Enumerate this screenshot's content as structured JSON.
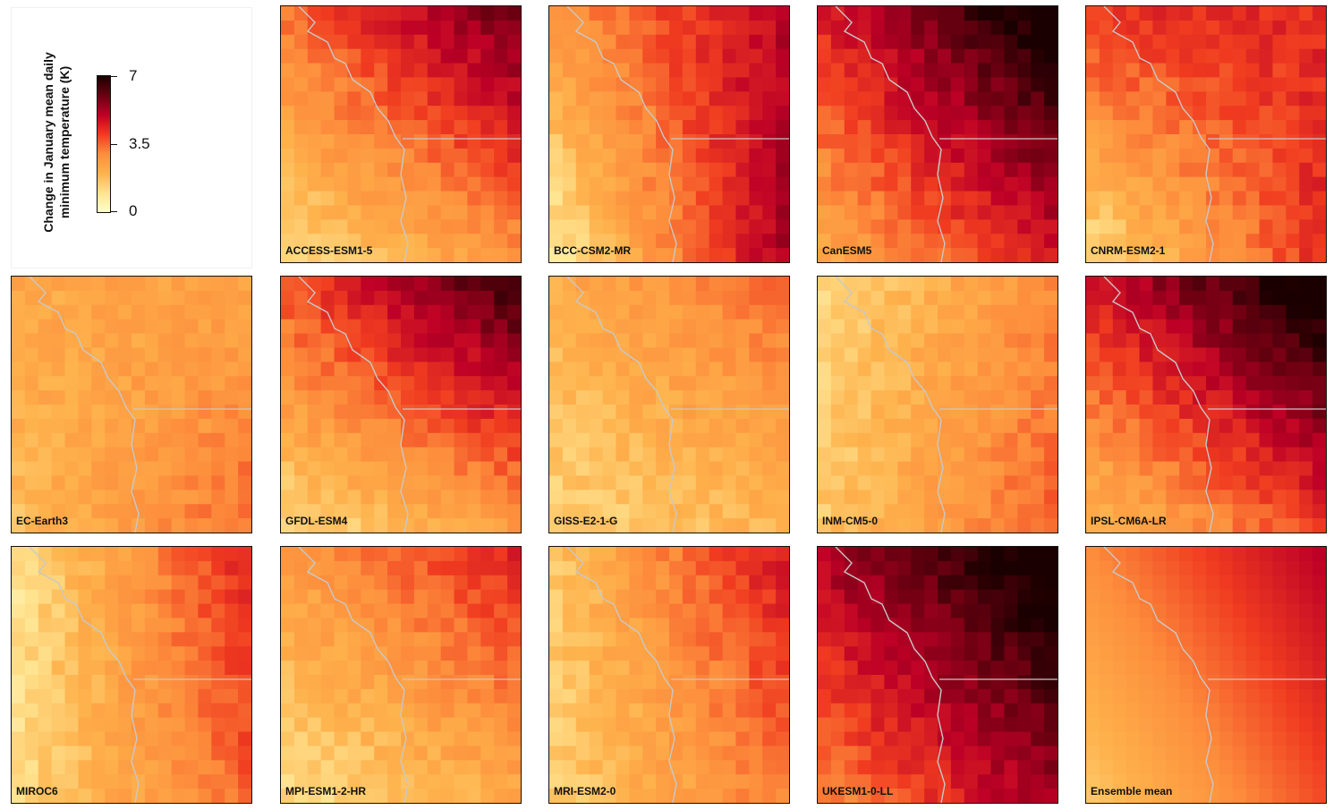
{
  "legend": {
    "title_line1": "Change in January mean daily",
    "title_line2": "minimum temperature (K)",
    "ticks": [
      "7",
      "3.5",
      "0"
    ],
    "vmin": 0,
    "vmax": 7,
    "colors": [
      "#ffffcc",
      "#ffe38f",
      "#feb24c",
      "#fd8d3c",
      "#f03b20",
      "#bd0026",
      "#6b0011",
      "#1a0000"
    ]
  },
  "chart_data": {
    "type": "heatmap",
    "value_range": [
      0,
      7
    ],
    "panels": [
      {
        "label": "ACCESS-ESM1-5",
        "nw": 3.4,
        "ne": 6.0,
        "sw": 1.2,
        "se": 2.8
      },
      {
        "label": "BCC-CSM2-MR",
        "nw": 2.8,
        "ne": 5.0,
        "sw": 0.8,
        "se": 5.2
      },
      {
        "label": "CanESM5",
        "nw": 4.5,
        "ne": 7.5,
        "sw": 2.3,
        "se": 4.6
      },
      {
        "label": "CNRM-ESM2-1",
        "nw": 4.2,
        "ne": 4.3,
        "sw": 1.1,
        "se": 4.2
      },
      {
        "label": "EC-Earth3",
        "nw": 2.3,
        "ne": 2.4,
        "sw": 1.8,
        "se": 3.4
      },
      {
        "label": "GFDL-ESM4",
        "nw": 3.8,
        "ne": 6.6,
        "sw": 1.2,
        "se": 2.6
      },
      {
        "label": "GISS-E2-1-G",
        "nw": 2.2,
        "ne": 3.4,
        "sw": 1.3,
        "se": 2.0
      },
      {
        "label": "INM-CM5-0",
        "nw": 1.2,
        "ne": 3.0,
        "sw": 1.6,
        "se": 3.6
      },
      {
        "label": "IPSL-CM6A-LR",
        "nw": 4.6,
        "ne": 7.5,
        "sw": 1.8,
        "se": 4.0
      },
      {
        "label": "MIROC6",
        "nw": 1.0,
        "ne": 4.4,
        "sw": 1.2,
        "se": 3.5
      },
      {
        "label": "MPI-ESM1-2-HR",
        "nw": 2.6,
        "ne": 4.4,
        "sw": 1.1,
        "se": 2.3
      },
      {
        "label": "MRI-ESM2-0",
        "nw": 1.6,
        "ne": 4.6,
        "sw": 1.4,
        "se": 3.2
      },
      {
        "label": "UKESM1-0-LL",
        "nw": 5.2,
        "ne": 7.6,
        "sw": 3.0,
        "se": 5.4
      },
      {
        "label": "Ensemble mean",
        "nw": 3.0,
        "ne": 5.0,
        "sw": 1.6,
        "se": 3.8
      }
    ]
  }
}
